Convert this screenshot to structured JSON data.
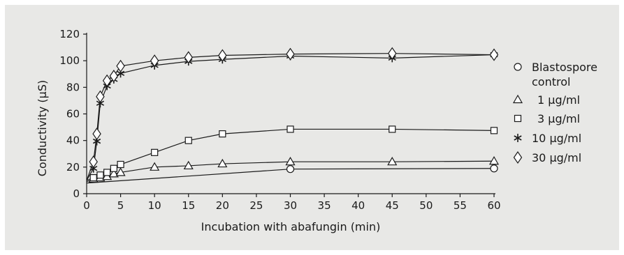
{
  "chart_data": {
    "type": "line",
    "title": "",
    "xlabel": "Incubation with abafungin (min)",
    "ylabel": "Conductivity (µS)",
    "xlim": [
      0,
      60
    ],
    "ylim": [
      0,
      120
    ],
    "xticks": [
      0,
      5,
      10,
      15,
      20,
      25,
      30,
      35,
      40,
      45,
      50,
      55,
      60
    ],
    "yticks": [
      0,
      20,
      40,
      60,
      80,
      100,
      120
    ],
    "grid": false,
    "legend_position": "right",
    "series": [
      {
        "name": "Blastospore control",
        "name_lines": [
          "Blastospore",
          "control"
        ],
        "marker": "circle",
        "x": [
          0,
          30,
          60
        ],
        "y": [
          8,
          18.5,
          19
        ]
      },
      {
        "name": "1 µg/ml",
        "marker": "triangle",
        "x": [
          0,
          1,
          2,
          3,
          4,
          5,
          10,
          15,
          20,
          30,
          45,
          60
        ],
        "y": [
          9,
          11,
          12,
          13,
          15,
          16,
          20,
          21,
          22.5,
          24,
          24,
          24.5
        ]
      },
      {
        "name": "3 µg/ml",
        "marker": "square",
        "x": [
          0,
          1,
          2,
          3,
          4,
          5,
          10,
          15,
          20,
          30,
          45,
          60
        ],
        "y": [
          10,
          12,
          14,
          16,
          19,
          22,
          31,
          40,
          45,
          48.5,
          48.5,
          47.5
        ]
      },
      {
        "name": "10 µg/ml",
        "marker": "asterisk",
        "x": [
          0,
          1,
          1.5,
          2,
          3,
          4,
          5,
          10,
          15,
          20,
          30,
          45,
          60
        ],
        "y": [
          10,
          19,
          39.5,
          68,
          81,
          86,
          90.5,
          96.5,
          99.5,
          101,
          103.5,
          102,
          104.5
        ]
      },
      {
        "name": "30 µg/ml",
        "marker": "diamond",
        "x": [
          0,
          1,
          1.5,
          2,
          3,
          4,
          5,
          10,
          15,
          20,
          30,
          45,
          60
        ],
        "y": [
          10,
          24,
          45,
          73,
          85,
          88.5,
          96,
          100,
          102.5,
          104,
          105,
          105.5,
          104.5
        ]
      }
    ]
  }
}
